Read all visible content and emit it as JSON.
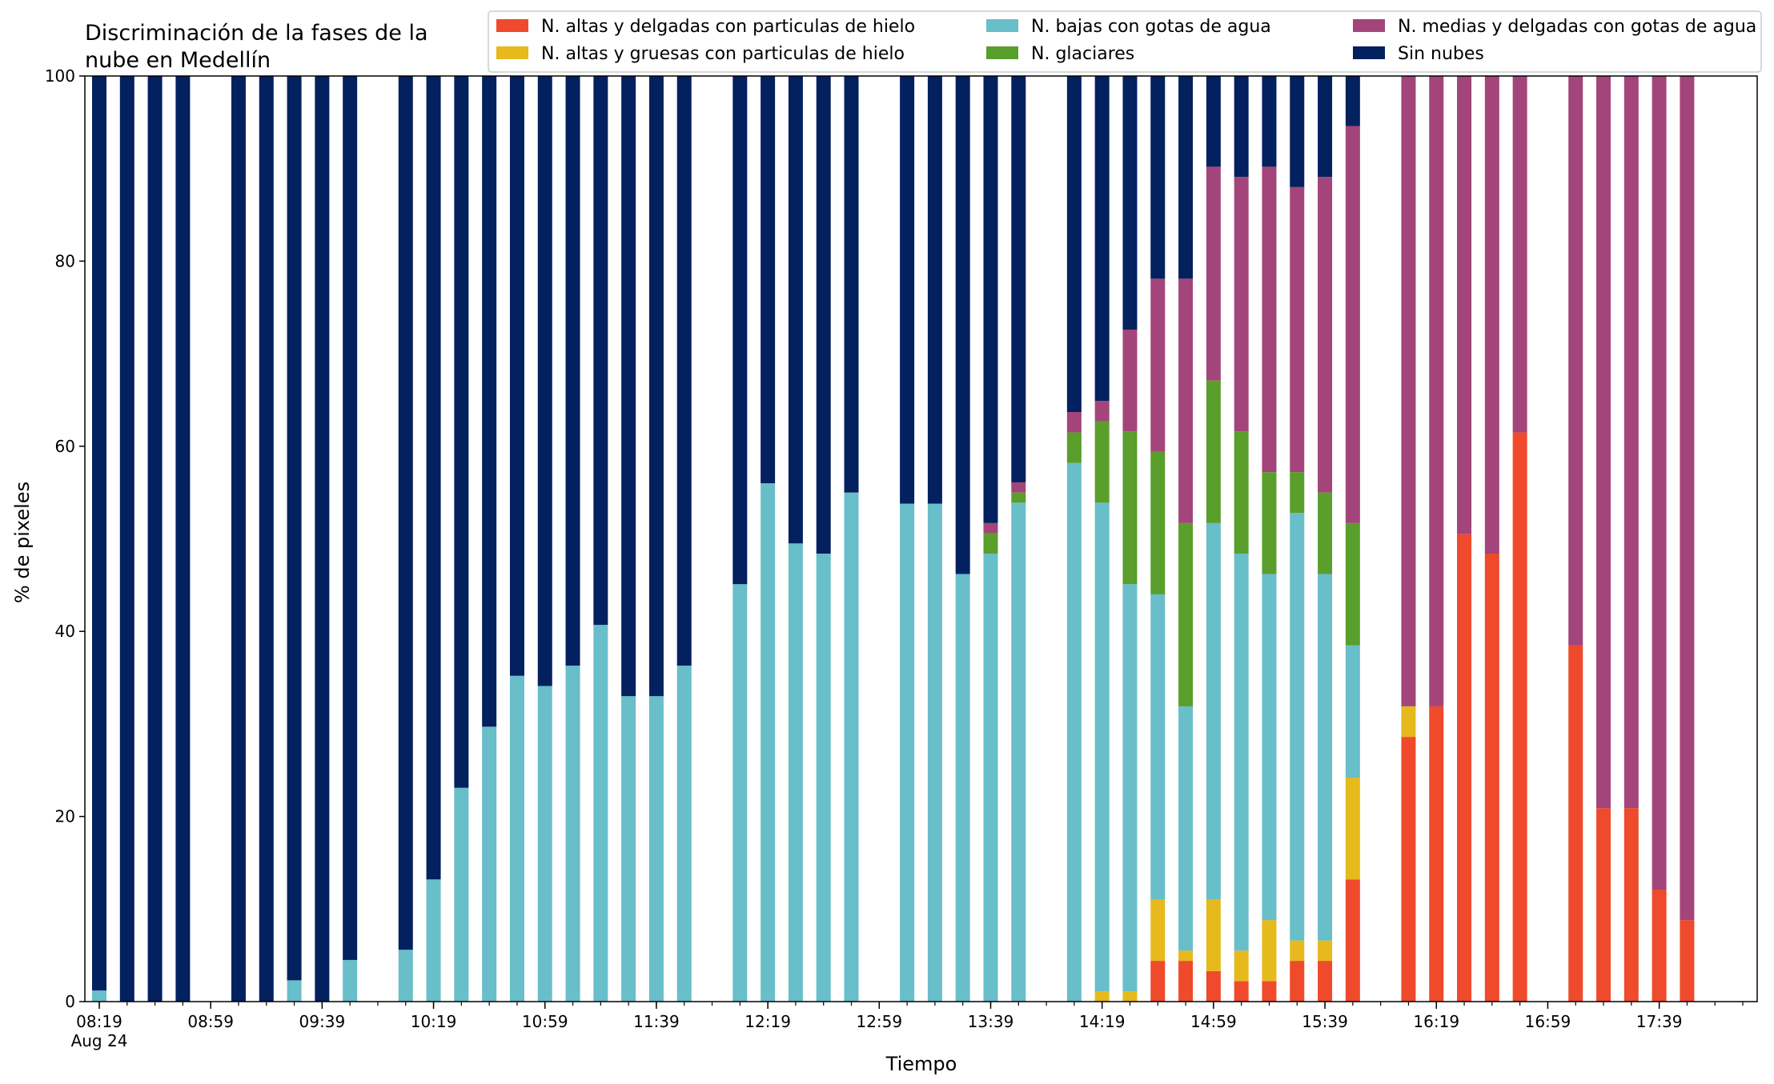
{
  "chart_data": {
    "type": "bar",
    "stacked": true,
    "title": "Discriminación de la fases de la\nnube en Medellín",
    "xlabel": "Tiempo",
    "ylabel": "% de pixeles",
    "ylim": [
      0,
      100
    ],
    "yticks": [
      0,
      20,
      40,
      60,
      80,
      100
    ],
    "xlim": [
      "08:19",
      "18:09"
    ],
    "xticks": [
      {
        "time": "08:19",
        "label": "08:19",
        "sublabel": "Aug 24"
      },
      {
        "time": "08:59",
        "label": "08:59"
      },
      {
        "time": "09:39",
        "label": "09:39"
      },
      {
        "time": "10:19",
        "label": "10:19"
      },
      {
        "time": "10:59",
        "label": "10:59"
      },
      {
        "time": "11:39",
        "label": "11:39"
      },
      {
        "time": "12:19",
        "label": "12:19"
      },
      {
        "time": "12:59",
        "label": "12:59"
      },
      {
        "time": "13:39",
        "label": "13:39"
      },
      {
        "time": "14:19",
        "label": "14:19"
      },
      {
        "time": "14:59",
        "label": "14:59"
      },
      {
        "time": "15:39",
        "label": "15:39"
      },
      {
        "time": "16:19",
        "label": "16:19"
      },
      {
        "time": "16:59",
        "label": "16:59"
      },
      {
        "time": "17:39",
        "label": "17:39"
      }
    ],
    "minor_tick_step_minutes": 10,
    "grid": false,
    "legend_position": "top-right",
    "legend_columns": 3,
    "series_order": [
      "altas_delgadas",
      "altas_gruesas",
      "bajas_agua",
      "glaciares",
      "medias_agua",
      "sin_nubes"
    ],
    "series": [
      {
        "key": "altas_delgadas",
        "name": "N. altas y delgadas con particulas de hielo",
        "color": "#ef4a2c"
      },
      {
        "key": "altas_gruesas",
        "name": "N. altas y gruesas con particulas de hielo",
        "color": "#e6b91c"
      },
      {
        "key": "bajas_agua",
        "name": "N. bajas con gotas de agua",
        "color": "#68bec9"
      },
      {
        "key": "glaciares",
        "name": "N. glaciares",
        "color": "#5a9e2c"
      },
      {
        "key": "medias_agua",
        "name": "N. medias y delgadas con gotas de agua",
        "color": "#a3457a"
      },
      {
        "key": "sin_nubes",
        "name": "Sin nubes",
        "color": "#03205f"
      }
    ],
    "bars": [
      {
        "time": "08:19",
        "altas_delgadas": 0,
        "altas_gruesas": 0,
        "bajas_agua": 1.2,
        "glaciares": 0,
        "medias_agua": 0,
        "sin_nubes": 98.8
      },
      {
        "time": "08:29",
        "altas_delgadas": 0,
        "altas_gruesas": 0,
        "bajas_agua": 0,
        "glaciares": 0,
        "medias_agua": 0,
        "sin_nubes": 100
      },
      {
        "time": "08:39",
        "altas_delgadas": 0,
        "altas_gruesas": 0,
        "bajas_agua": 0,
        "glaciares": 0,
        "medias_agua": 0,
        "sin_nubes": 100
      },
      {
        "time": "08:49",
        "altas_delgadas": 0,
        "altas_gruesas": 0,
        "bajas_agua": 0,
        "glaciares": 0,
        "medias_agua": 0,
        "sin_nubes": 100
      },
      {
        "time": "09:09",
        "altas_delgadas": 0,
        "altas_gruesas": 0,
        "bajas_agua": 0,
        "glaciares": 0,
        "medias_agua": 0,
        "sin_nubes": 100
      },
      {
        "time": "09:19",
        "altas_delgadas": 0,
        "altas_gruesas": 0,
        "bajas_agua": 0,
        "glaciares": 0,
        "medias_agua": 0,
        "sin_nubes": 100
      },
      {
        "time": "09:29",
        "altas_delgadas": 0,
        "altas_gruesas": 0,
        "bajas_agua": 2.3,
        "glaciares": 0,
        "medias_agua": 0,
        "sin_nubes": 97.7
      },
      {
        "time": "09:39",
        "altas_delgadas": 0,
        "altas_gruesas": 0,
        "bajas_agua": 0,
        "glaciares": 0,
        "medias_agua": 0,
        "sin_nubes": 100
      },
      {
        "time": "09:49",
        "altas_delgadas": 0,
        "altas_gruesas": 0,
        "bajas_agua": 4.5,
        "glaciares": 0,
        "medias_agua": 0,
        "sin_nubes": 95.5
      },
      {
        "time": "10:09",
        "altas_delgadas": 0,
        "altas_gruesas": 0,
        "bajas_agua": 5.6,
        "glaciares": 0,
        "medias_agua": 0,
        "sin_nubes": 94.4
      },
      {
        "time": "10:19",
        "altas_delgadas": 0,
        "altas_gruesas": 0,
        "bajas_agua": 13.2,
        "glaciares": 0,
        "medias_agua": 0,
        "sin_nubes": 86.8
      },
      {
        "time": "10:29",
        "altas_delgadas": 0,
        "altas_gruesas": 0,
        "bajas_agua": 23.1,
        "glaciares": 0,
        "medias_agua": 0,
        "sin_nubes": 76.9
      },
      {
        "time": "10:39",
        "altas_delgadas": 0,
        "altas_gruesas": 0,
        "bajas_agua": 29.7,
        "glaciares": 0,
        "medias_agua": 0,
        "sin_nubes": 70.3
      },
      {
        "time": "10:49",
        "altas_delgadas": 0,
        "altas_gruesas": 0,
        "bajas_agua": 35.2,
        "glaciares": 0,
        "medias_agua": 0,
        "sin_nubes": 64.8
      },
      {
        "time": "10:59",
        "altas_delgadas": 0,
        "altas_gruesas": 0,
        "bajas_agua": 34.1,
        "glaciares": 0,
        "medias_agua": 0,
        "sin_nubes": 65.9
      },
      {
        "time": "11:09",
        "altas_delgadas": 0,
        "altas_gruesas": 0,
        "bajas_agua": 36.3,
        "glaciares": 0,
        "medias_agua": 0,
        "sin_nubes": 63.7
      },
      {
        "time": "11:19",
        "altas_delgadas": 0,
        "altas_gruesas": 0,
        "bajas_agua": 40.7,
        "glaciares": 0,
        "medias_agua": 0,
        "sin_nubes": 59.3
      },
      {
        "time": "11:29",
        "altas_delgadas": 0,
        "altas_gruesas": 0,
        "bajas_agua": 33.0,
        "glaciares": 0,
        "medias_agua": 0,
        "sin_nubes": 67.0
      },
      {
        "time": "11:39",
        "altas_delgadas": 0,
        "altas_gruesas": 0,
        "bajas_agua": 33.0,
        "glaciares": 0,
        "medias_agua": 0,
        "sin_nubes": 67.0
      },
      {
        "time": "11:49",
        "altas_delgadas": 0,
        "altas_gruesas": 0,
        "bajas_agua": 36.3,
        "glaciares": 0,
        "medias_agua": 0,
        "sin_nubes": 63.7
      },
      {
        "time": "12:09",
        "altas_delgadas": 0,
        "altas_gruesas": 0,
        "bajas_agua": 45.1,
        "glaciares": 0,
        "medias_agua": 0,
        "sin_nubes": 54.9
      },
      {
        "time": "12:19",
        "altas_delgadas": 0,
        "altas_gruesas": 0,
        "bajas_agua": 56.0,
        "glaciares": 0,
        "medias_agua": 0,
        "sin_nubes": 44.0
      },
      {
        "time": "12:29",
        "altas_delgadas": 0,
        "altas_gruesas": 0,
        "bajas_agua": 49.5,
        "glaciares": 0,
        "medias_agua": 0,
        "sin_nubes": 50.5
      },
      {
        "time": "12:39",
        "altas_delgadas": 0,
        "altas_gruesas": 0,
        "bajas_agua": 48.4,
        "glaciares": 0,
        "medias_agua": 0,
        "sin_nubes": 51.6
      },
      {
        "time": "12:49",
        "altas_delgadas": 0,
        "altas_gruesas": 0,
        "bajas_agua": 55.0,
        "glaciares": 0,
        "medias_agua": 0,
        "sin_nubes": 45.0
      },
      {
        "time": "13:09",
        "altas_delgadas": 0,
        "altas_gruesas": 0,
        "bajas_agua": 53.8,
        "glaciares": 0,
        "medias_agua": 0,
        "sin_nubes": 46.2
      },
      {
        "time": "13:19",
        "altas_delgadas": 0,
        "altas_gruesas": 0,
        "bajas_agua": 53.8,
        "glaciares": 0,
        "medias_agua": 0,
        "sin_nubes": 46.2
      },
      {
        "time": "13:29",
        "altas_delgadas": 0,
        "altas_gruesas": 0,
        "bajas_agua": 46.2,
        "glaciares": 0,
        "medias_agua": 0,
        "sin_nubes": 53.8
      },
      {
        "time": "13:39",
        "altas_delgadas": 0,
        "altas_gruesas": 0,
        "bajas_agua": 48.4,
        "glaciares": 2.2,
        "medias_agua": 1.1,
        "sin_nubes": 48.3
      },
      {
        "time": "13:49",
        "altas_delgadas": 0,
        "altas_gruesas": 0,
        "bajas_agua": 53.9,
        "glaciares": 1.1,
        "medias_agua": 1.1,
        "sin_nubes": 43.9
      },
      {
        "time": "14:09",
        "altas_delgadas": 0,
        "altas_gruesas": 0,
        "bajas_agua": 58.2,
        "glaciares": 3.3,
        "medias_agua": 2.2,
        "sin_nubes": 36.3
      },
      {
        "time": "14:19",
        "altas_delgadas": 0,
        "altas_gruesas": 1.1,
        "bajas_agua": 52.8,
        "glaciares": 8.8,
        "medias_agua": 2.2,
        "sin_nubes": 35.1
      },
      {
        "time": "14:29",
        "altas_delgadas": 0,
        "altas_gruesas": 1.1,
        "bajas_agua": 44.0,
        "glaciares": 16.5,
        "medias_agua": 11.0,
        "sin_nubes": 27.4
      },
      {
        "time": "14:39",
        "altas_delgadas": 4.4,
        "altas_gruesas": 6.6,
        "bajas_agua": 33.0,
        "glaciares": 15.4,
        "medias_agua": 18.7,
        "sin_nubes": 21.9
      },
      {
        "time": "14:49",
        "altas_delgadas": 4.4,
        "altas_gruesas": 1.1,
        "bajas_agua": 26.4,
        "glaciares": 19.8,
        "medias_agua": 26.4,
        "sin_nubes": 21.9
      },
      {
        "time": "14:59",
        "altas_delgadas": 3.3,
        "altas_gruesas": 7.7,
        "bajas_agua": 40.7,
        "glaciares": 15.4,
        "medias_agua": 23.1,
        "sin_nubes": 9.8
      },
      {
        "time": "15:09",
        "altas_delgadas": 2.2,
        "altas_gruesas": 3.3,
        "bajas_agua": 42.9,
        "glaciares": 13.2,
        "medias_agua": 27.5,
        "sin_nubes": 10.9
      },
      {
        "time": "15:19",
        "altas_delgadas": 2.2,
        "altas_gruesas": 6.6,
        "bajas_agua": 37.4,
        "glaciares": 11.0,
        "medias_agua": 33.0,
        "sin_nubes": 9.8
      },
      {
        "time": "15:29",
        "altas_delgadas": 4.4,
        "altas_gruesas": 2.2,
        "bajas_agua": 46.2,
        "glaciares": 4.4,
        "medias_agua": 30.8,
        "sin_nubes": 12.0
      },
      {
        "time": "15:39",
        "altas_delgadas": 4.4,
        "altas_gruesas": 2.2,
        "bajas_agua": 39.6,
        "glaciares": 8.8,
        "medias_agua": 34.1,
        "sin_nubes": 10.9
      },
      {
        "time": "15:49",
        "altas_delgadas": 13.2,
        "altas_gruesas": 11.0,
        "bajas_agua": 14.3,
        "glaciares": 13.2,
        "medias_agua": 42.9,
        "sin_nubes": 5.4
      },
      {
        "time": "16:09",
        "altas_delgadas": 28.6,
        "altas_gruesas": 3.3,
        "bajas_agua": 0,
        "glaciares": 0,
        "medias_agua": 68.1,
        "sin_nubes": 0
      },
      {
        "time": "16:19",
        "altas_delgadas": 31.9,
        "altas_gruesas": 0,
        "bajas_agua": 0,
        "glaciares": 0,
        "medias_agua": 68.1,
        "sin_nubes": 0
      },
      {
        "time": "16:29",
        "altas_delgadas": 50.5,
        "altas_gruesas": 0,
        "bajas_agua": 0,
        "glaciares": 0,
        "medias_agua": 49.5,
        "sin_nubes": 0
      },
      {
        "time": "16:39",
        "altas_delgadas": 48.4,
        "altas_gruesas": 0,
        "bajas_agua": 0,
        "glaciares": 0,
        "medias_agua": 51.6,
        "sin_nubes": 0
      },
      {
        "time": "16:49",
        "altas_delgadas": 61.5,
        "altas_gruesas": 0,
        "bajas_agua": 0,
        "glaciares": 0,
        "medias_agua": 38.5,
        "sin_nubes": 0
      },
      {
        "time": "17:09",
        "altas_delgadas": 38.5,
        "altas_gruesas": 0,
        "bajas_agua": 0,
        "glaciares": 0,
        "medias_agua": 61.5,
        "sin_nubes": 0
      },
      {
        "time": "17:19",
        "altas_delgadas": 20.9,
        "altas_gruesas": 0,
        "bajas_agua": 0,
        "glaciares": 0,
        "medias_agua": 79.1,
        "sin_nubes": 0
      },
      {
        "time": "17:29",
        "altas_delgadas": 20.9,
        "altas_gruesas": 0,
        "bajas_agua": 0,
        "glaciares": 0,
        "medias_agua": 79.1,
        "sin_nubes": 0
      },
      {
        "time": "17:39",
        "altas_delgadas": 12.1,
        "altas_gruesas": 0,
        "bajas_agua": 0,
        "glaciares": 0,
        "medias_agua": 87.9,
        "sin_nubes": 0
      },
      {
        "time": "17:49",
        "altas_delgadas": 8.8,
        "altas_gruesas": 0,
        "bajas_agua": 0,
        "glaciares": 0,
        "medias_agua": 91.2,
        "sin_nubes": 0
      }
    ]
  }
}
